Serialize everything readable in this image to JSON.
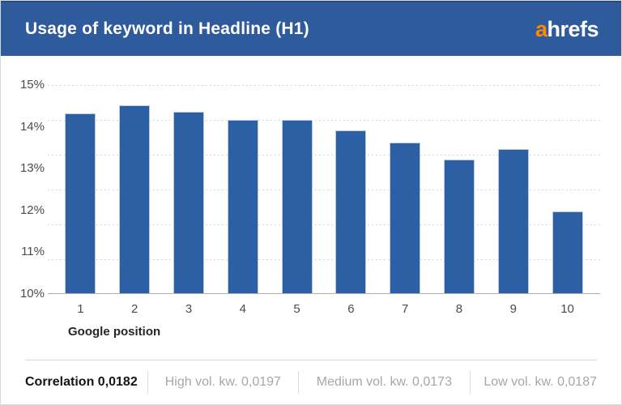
{
  "header": {
    "title": "Usage of keyword in Headline (H1)",
    "brand": {
      "prefix": "a",
      "rest": "hrefs"
    }
  },
  "colors": {
    "header_bg": "#2F5A9B",
    "header_border": "#26497F",
    "bar_fill": "#2D5FA4",
    "brand_orange": "#FF8A00",
    "gridline": "#C9C9C9",
    "axis_line": "#B0B0B0",
    "tick_text": "#4B4B4B",
    "muted_stat_text": "#A7A7A7"
  },
  "chart_data": {
    "type": "bar",
    "title": "Usage of keyword in Headline (H1)",
    "categories": [
      "1",
      "2",
      "3",
      "4",
      "5",
      "6",
      "7",
      "8",
      "9",
      "10"
    ],
    "values": [
      14.3,
      14.5,
      14.35,
      14.15,
      14.15,
      13.9,
      13.6,
      13.2,
      13.45,
      11.95
    ],
    "unit": "%",
    "xlabel": "Google position",
    "ylabel": "",
    "ylim": [
      10,
      15
    ],
    "y_ticks": [
      "15%",
      "14%",
      "13%",
      "12%",
      "11%",
      "10%"
    ],
    "grid": "horizontal-dotted",
    "legend": "none"
  },
  "footer": {
    "stats": [
      {
        "name": "Correlation",
        "value": "0,0182",
        "emphasis": true
      },
      {
        "name": "High vol. kw.",
        "value": "0,0197",
        "emphasis": false
      },
      {
        "name": "Medium vol. kw.",
        "value": "0,0173",
        "emphasis": false
      },
      {
        "name": "Low vol. kw.",
        "value": "0,0187",
        "emphasis": false
      }
    ]
  }
}
